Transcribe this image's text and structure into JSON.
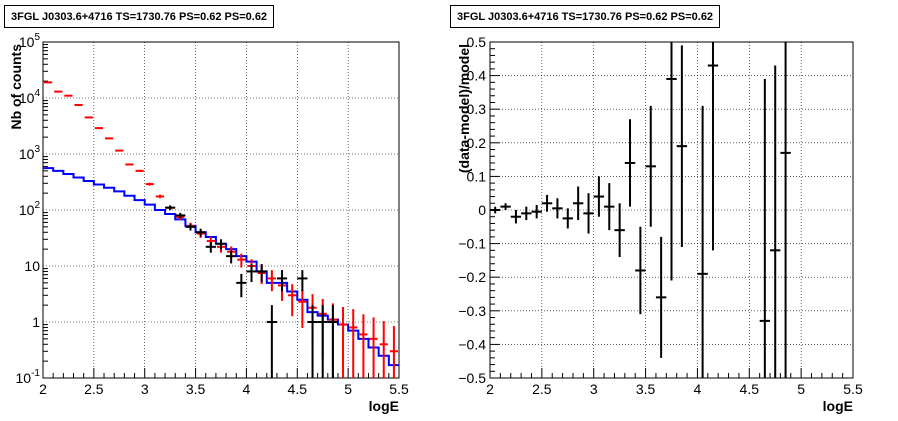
{
  "chart_data": [
    {
      "type": "histogram",
      "title": "3FGL J0303.6+4716 TS=1730.76 PS=0.62 PS=0.62",
      "xlabel": "logE",
      "ylabel": "Nb of counts",
      "xlim": [
        2,
        5.5
      ],
      "ylim": [
        0.1,
        100000
      ],
      "yscale": "log",
      "grid": true,
      "x_ticks": [
        "2",
        "2.5",
        "3",
        "3.5",
        "4",
        "4.5",
        "5",
        "5.5"
      ],
      "y_ticks": [
        {
          "value": 0.1,
          "base": "10",
          "exp": "-1"
        },
        {
          "value": 1,
          "base": "1",
          "exp": ""
        },
        {
          "value": 10,
          "base": "10",
          "exp": ""
        },
        {
          "value": 100,
          "base": "10",
          "exp": "2"
        },
        {
          "value": 1000,
          "base": "10",
          "exp": "3"
        },
        {
          "value": 10000,
          "base": "10",
          "exp": "4"
        },
        {
          "value": 100000,
          "base": "10",
          "exp": "5"
        }
      ],
      "bin_width": 0.1,
      "series": [
        {
          "color": "#0000ff",
          "style": "step",
          "x": [
            2.05,
            2.15,
            2.25,
            2.35,
            2.45,
            2.55,
            2.65,
            2.75,
            2.85,
            2.95,
            3.05,
            3.15,
            3.25,
            3.35,
            3.45,
            3.55,
            3.65,
            3.75,
            3.85,
            3.95,
            4.05,
            4.15,
            4.25,
            4.35,
            4.45,
            4.55,
            4.65,
            4.75,
            4.85,
            4.95,
            5.05,
            5.15,
            5.25,
            5.35,
            5.45
          ],
          "values": [
            560,
            500,
            440,
            380,
            330,
            285,
            250,
            215,
            180,
            150,
            125,
            100,
            85,
            68,
            52,
            40,
            33,
            25,
            20,
            15,
            12,
            8,
            5,
            5,
            3.5,
            2.5,
            1.5,
            1.3,
            1.1,
            0.9,
            0.7,
            0.5,
            0.35,
            0.25,
            0.17
          ]
        },
        {
          "color": "#ff0000",
          "style": "errorbar",
          "x": [
            2.05,
            2.15,
            2.25,
            2.35,
            2.45,
            2.55,
            2.65,
            2.75,
            2.85,
            2.95,
            3.05,
            3.15,
            3.25,
            3.35,
            3.45,
            3.55,
            3.65,
            3.75,
            3.85,
            3.95,
            4.05,
            4.15,
            4.25,
            4.35,
            4.45,
            4.55,
            4.65,
            4.75,
            4.85,
            4.95,
            5.05,
            5.15,
            5.25,
            5.35,
            5.45
          ],
          "values": [
            19000,
            13000,
            11000,
            7500,
            4500,
            2900,
            1900,
            1150,
            650,
            500,
            290,
            175,
            110,
            75,
            52,
            38,
            28,
            22,
            18,
            13,
            10,
            7.5,
            6,
            4.5,
            3,
            2.3,
            1.8,
            1.4,
            1.1,
            0.9,
            0.8,
            0.6,
            0.5,
            0.4,
            0.3
          ]
        },
        {
          "color": "#000000",
          "style": "errorbar",
          "x": [
            3.25,
            3.35,
            3.45,
            3.55,
            3.65,
            3.75,
            3.85,
            3.95,
            4.05,
            4.15,
            4.25,
            4.35,
            4.55,
            4.65,
            4.75,
            4.85
          ],
          "values": [
            110,
            80,
            50,
            40,
            22,
            25,
            15,
            5,
            8,
            8,
            1,
            6,
            6,
            1,
            1,
            1
          ]
        }
      ]
    },
    {
      "type": "errorbar",
      "title": "3FGL J0303.6+4716 TS=1730.76 PS=0.62 PS=0.62",
      "xlabel": "logE",
      "ylabel": "(data-model)/model",
      "xlim": [
        2,
        5.5
      ],
      "ylim": [
        -0.5,
        0.5
      ],
      "grid": true,
      "x_ticks": [
        "2",
        "2.5",
        "3",
        "3.5",
        "4",
        "4.5",
        "5",
        "5.5"
      ],
      "y_ticks": [
        "−0.5",
        "−0.4",
        "−0.3",
        "−0.2",
        "−0.1",
        "0",
        "0.1",
        "0.2",
        "0.3",
        "0.4",
        "0.5"
      ],
      "series": [
        {
          "color": "#000000",
          "x": [
            2.05,
            2.15,
            2.25,
            2.35,
            2.45,
            2.55,
            2.65,
            2.75,
            2.85,
            2.95,
            3.05,
            3.15,
            3.25,
            3.35,
            3.45,
            3.55,
            3.65,
            3.75,
            3.85,
            4.05,
            4.15,
            4.65,
            4.75,
            4.85
          ],
          "y": [
            0.0,
            0.01,
            -0.02,
            -0.01,
            -0.005,
            0.02,
            0.005,
            -0.025,
            0.02,
            -0.01,
            0.04,
            0.01,
            -0.06,
            0.14,
            -0.18,
            0.13,
            -0.26,
            0.39,
            0.19,
            -0.19,
            0.43,
            -0.33,
            -0.12,
            0.17
          ],
          "yerr": [
            0.01,
            0.01,
            0.02,
            0.02,
            0.02,
            0.025,
            0.03,
            0.03,
            0.05,
            0.06,
            0.06,
            0.07,
            0.08,
            0.13,
            0.13,
            0.18,
            0.18,
            0.6,
            0.3,
            0.5,
            0.55,
            0.72,
            0.55,
            0.8
          ]
        }
      ]
    }
  ]
}
